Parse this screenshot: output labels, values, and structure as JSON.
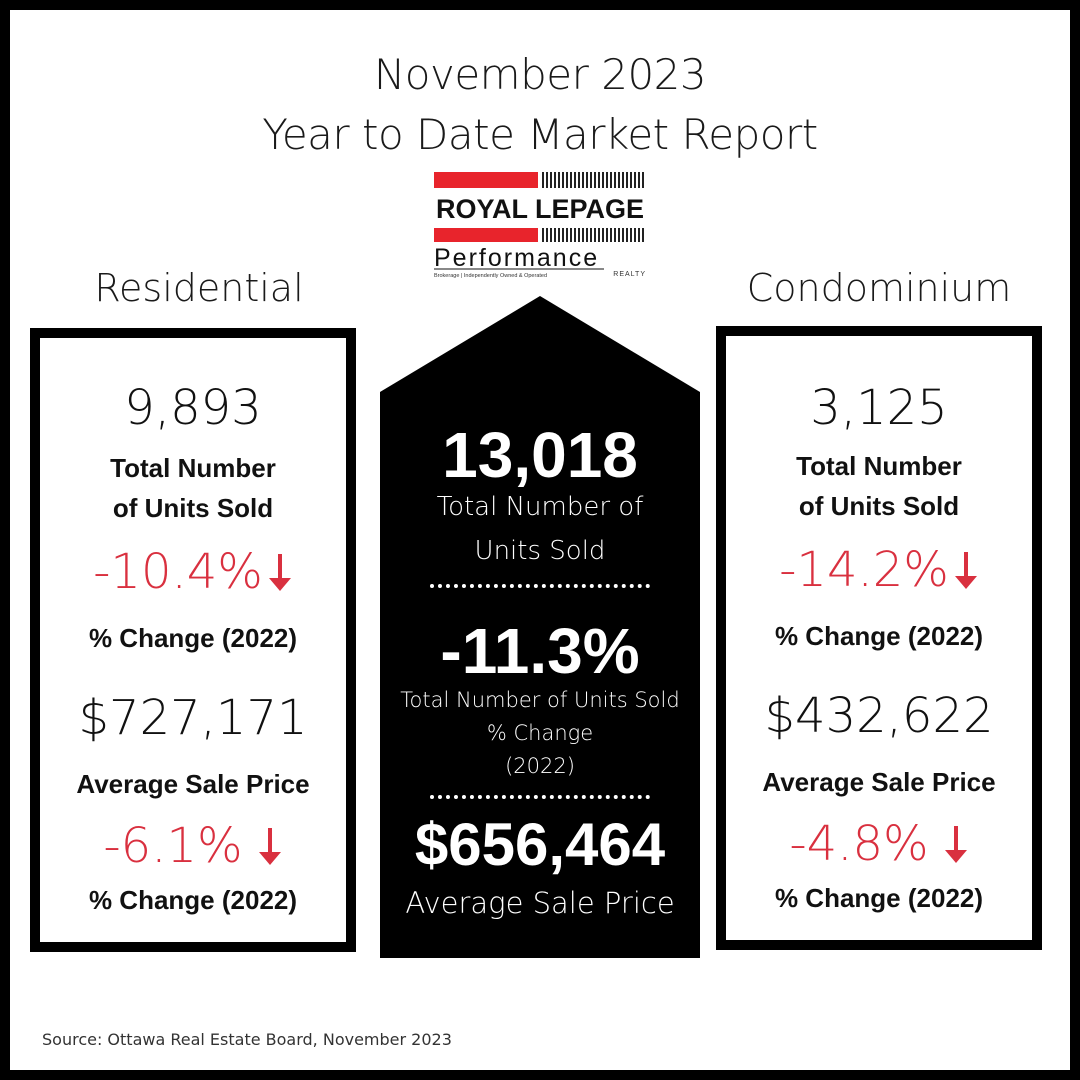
{
  "header": {
    "title_line1": "November 2023",
    "title_line2": "Year to Date Market Report"
  },
  "logo": {
    "brand": "ROYAL LEPAGE",
    "subbrand": "Performance",
    "tagline": "Brokerage | Independently Owned & Operated",
    "realty": "REALTY"
  },
  "residential": {
    "heading": "Residential",
    "units_value": "9,893",
    "units_label_1": "Total Number",
    "units_label_2": "of Units Sold",
    "units_change": "-10.4%",
    "units_change_label": "% Change (2022)",
    "price_value": "$727,171",
    "price_label": "Average Sale Price",
    "price_change": "-6.1%",
    "price_change_label": "% Change (2022)"
  },
  "total": {
    "units_value": "13,018",
    "units_label_1": "Total Number of",
    "units_label_2": "Units Sold",
    "change_value": "-11.3%",
    "change_label_1": "Total Number of Units Sold",
    "change_label_2": "% Change",
    "change_label_3": "(2022)",
    "price_value": "$656,464",
    "price_label": "Average Sale Price"
  },
  "condominium": {
    "heading": "Condominium",
    "units_value": "3,125",
    "units_label_1": "Total Number",
    "units_label_2": "of Units Sold",
    "units_change": "-14.2%",
    "units_change_label": "% Change (2022)",
    "price_value": "$432,622",
    "price_label": "Average Sale Price",
    "price_change": "-4.8%",
    "price_change_label": "% Change (2022)"
  },
  "footer": {
    "source": "Source: Ottawa Real Estate Board, November 2023"
  },
  "colors": {
    "accent_red": "#d9303f",
    "logo_red": "#e8242c",
    "black": "#000000"
  }
}
